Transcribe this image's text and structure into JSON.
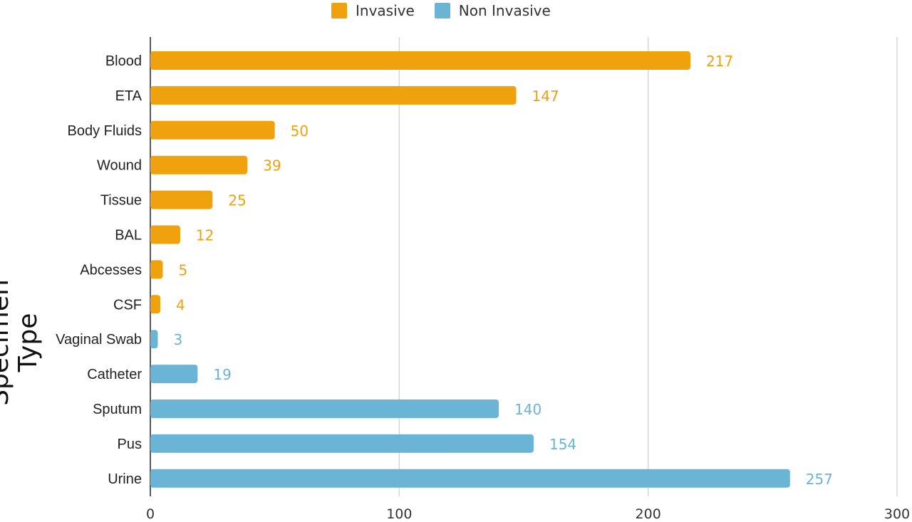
{
  "legend": {
    "items": [
      {
        "label": "Invasive",
        "color": "#f0a10e"
      },
      {
        "label": "Non Invasive",
        "color": "#6ab4d6"
      }
    ]
  },
  "chart_data": {
    "type": "bar",
    "orientation": "horizontal",
    "title": "",
    "xlabel": "",
    "ylabel": "Specimen Type",
    "xlim": [
      0,
      300
    ],
    "x_ticks": [
      "0",
      "100",
      "200",
      "300"
    ],
    "grid": "vertical",
    "legend_position": "top",
    "categories": [
      "Blood",
      "ETA",
      "Body Fluids",
      "Wound",
      "Tissue",
      "BAL",
      "Abcesses",
      "CSF",
      "Vaginal Swab",
      "Catheter",
      "Sputum",
      "Pus",
      "Urine"
    ],
    "values": [
      217,
      147,
      50,
      39,
      25,
      12,
      5,
      4,
      3,
      19,
      140,
      154,
      257
    ],
    "value_labels": [
      "217",
      "147",
      "50",
      "39",
      "25",
      "12",
      "5",
      "4",
      "3",
      "19",
      "140",
      "154",
      "257"
    ],
    "groups": [
      "Invasive",
      "Invasive",
      "Invasive",
      "Invasive",
      "Invasive",
      "Invasive",
      "Invasive",
      "Invasive",
      "Non Invasive",
      "Non Invasive",
      "Non Invasive",
      "Non Invasive",
      "Non Invasive"
    ],
    "series": [
      {
        "name": "Invasive",
        "color": "#f0a10e"
      },
      {
        "name": "Non Invasive",
        "color": "#6ab4d6"
      }
    ]
  }
}
